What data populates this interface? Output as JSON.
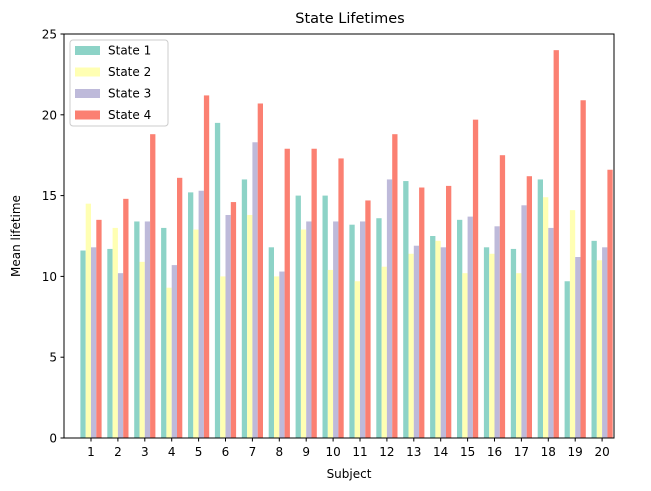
{
  "chart_data": {
    "type": "bar",
    "title": "State Lifetimes",
    "xlabel": "Subject",
    "ylabel": "Mean lifetime",
    "categories": [
      "1",
      "2",
      "3",
      "4",
      "5",
      "6",
      "7",
      "8",
      "9",
      "10",
      "11",
      "12",
      "13",
      "14",
      "15",
      "16",
      "17",
      "18",
      "19",
      "20"
    ],
    "ylim": [
      0,
      25
    ],
    "yticks": [
      0,
      5,
      10,
      15,
      20,
      25
    ],
    "grid": false,
    "legend_position": "top-left",
    "series": [
      {
        "name": "State 1",
        "color": "#8dd3c7",
        "values": [
          11.6,
          11.7,
          13.4,
          13.0,
          15.2,
          19.5,
          16.0,
          11.8,
          15.0,
          15.0,
          13.2,
          13.6,
          15.9,
          12.5,
          13.5,
          11.8,
          11.7,
          16.0,
          9.7,
          12.2
        ]
      },
      {
        "name": "State 2",
        "color": "#ffffb3",
        "values": [
          14.5,
          13.0,
          10.9,
          9.3,
          12.9,
          10.0,
          13.8,
          10.0,
          12.9,
          10.4,
          9.7,
          10.6,
          11.4,
          12.2,
          10.2,
          11.4,
          10.2,
          14.9,
          14.1,
          11.0
        ]
      },
      {
        "name": "State 3",
        "color": "#bebada",
        "values": [
          11.8,
          10.2,
          13.4,
          10.7,
          15.3,
          13.8,
          18.3,
          10.3,
          13.4,
          13.4,
          13.4,
          16.0,
          11.9,
          11.8,
          13.7,
          13.1,
          14.4,
          13.0,
          11.2,
          11.8
        ]
      },
      {
        "name": "State 4",
        "color": "#fb8072",
        "values": [
          13.5,
          14.8,
          18.8,
          16.1,
          21.2,
          14.6,
          20.7,
          17.9,
          17.9,
          17.3,
          14.7,
          18.8,
          15.5,
          15.6,
          19.7,
          17.5,
          16.2,
          24.0,
          20.9,
          16.6
        ]
      }
    ]
  }
}
